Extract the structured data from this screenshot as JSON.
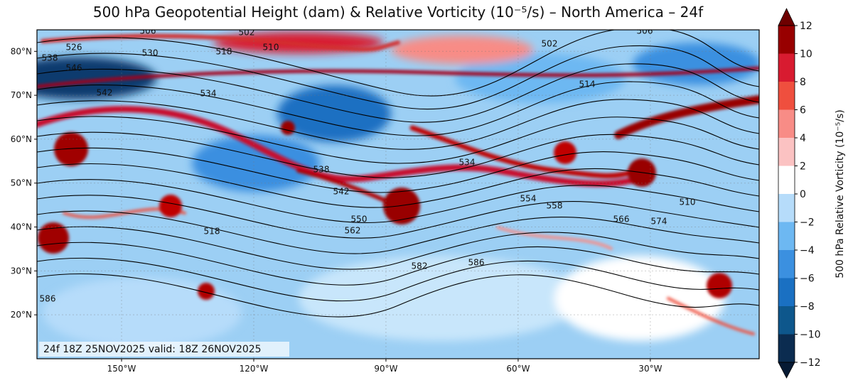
{
  "title": "500 hPa Geopotential Height (dam) & Relative Vorticity (10⁻⁵/s) – North America – 24f",
  "annotation": "24f 18Z 25NOV2025 valid: 18Z 26NOV2025",
  "map": {
    "xlim": [
      -169.2,
      -5.3
    ],
    "ylim": [
      10,
      84.9
    ],
    "grid": true,
    "xticks": [
      {
        "value": -150,
        "label": "150°W"
      },
      {
        "value": -120,
        "label": "120°W"
      },
      {
        "value": -90,
        "label": "90°W"
      },
      {
        "value": -60,
        "label": "60°W"
      },
      {
        "value": -30,
        "label": "30°W"
      }
    ],
    "yticks": [
      {
        "value": 20,
        "label": "20°N"
      },
      {
        "value": 30,
        "label": "30°N"
      },
      {
        "value": 40,
        "label": "40°N"
      },
      {
        "value": 50,
        "label": "50°N"
      },
      {
        "value": 60,
        "label": "60°N"
      },
      {
        "value": 70,
        "label": "70°N"
      },
      {
        "value": 80,
        "label": "80°N"
      }
    ]
  },
  "contour_labels": [
    "506",
    "502",
    "518",
    "510",
    "526",
    "530",
    "538",
    "546",
    "542",
    "534",
    "514",
    "502",
    "506",
    "538",
    "542",
    "550",
    "562",
    "518",
    "586",
    "582",
    "586",
    "554",
    "558",
    "566",
    "574",
    "510",
    "534"
  ],
  "colorbar": {
    "label": "500 hPa Relative Vorticity (10⁻⁵/s)",
    "ticks": [
      {
        "value": -12,
        "label": "−12"
      },
      {
        "value": -10,
        "label": "−10"
      },
      {
        "value": -8,
        "label": "−8"
      },
      {
        "value": -6,
        "label": "−6"
      },
      {
        "value": -4,
        "label": "−4"
      },
      {
        "value": -2,
        "label": "−2"
      },
      0,
      2,
      4,
      6,
      8,
      10,
      12
    ],
    "colors": [
      "#0b2c50",
      "#0e578c",
      "#1a70c2",
      "#3b90e0",
      "#6db8f2",
      "#b6dcfa",
      "#ffffff",
      "#fbc2c2",
      "#f88c86",
      "#ef4f3e",
      "#d81b30",
      "#980000"
    ],
    "extend_colors": [
      "#061a33",
      "#6e0000"
    ]
  }
}
